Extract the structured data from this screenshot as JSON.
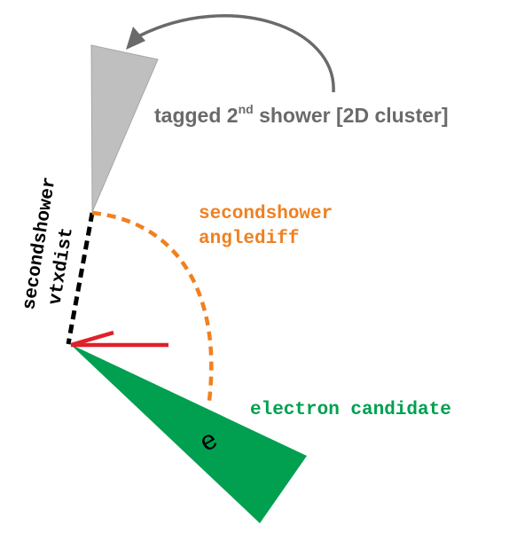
{
  "colors": {
    "second_shower_fill": "#bfbfbf",
    "second_shower_stroke": "#a6a6a6",
    "electron_fill": "#00a050",
    "vtxdist_line": "#000000",
    "anglediff_line": "#f08020",
    "arrow": "#6a6a6a",
    "direction_marker": "#e0202a",
    "tag_text": "#6a6a6a",
    "anglediff_text": "#f08020",
    "electron_text": "#00a050"
  },
  "labels": {
    "tagged_shower_main": "tagged 2",
    "tagged_shower_superscript": "nd",
    "tagged_shower_rest": " shower [2D cluster]",
    "secondshower_anglediff_line1": "secondshower",
    "secondshower_anglediff_line2": "anglediff",
    "secondshower_vtxdist_line1": "secondshower",
    "secondshower_vtxdist_line2": "vtxdist",
    "electron_candidate": "electron candidate",
    "electron_symbol": "e"
  },
  "icons": {
    "curved_arrow": "curved-arrow-icon",
    "direction_marker": "arrow-marker-icon"
  }
}
